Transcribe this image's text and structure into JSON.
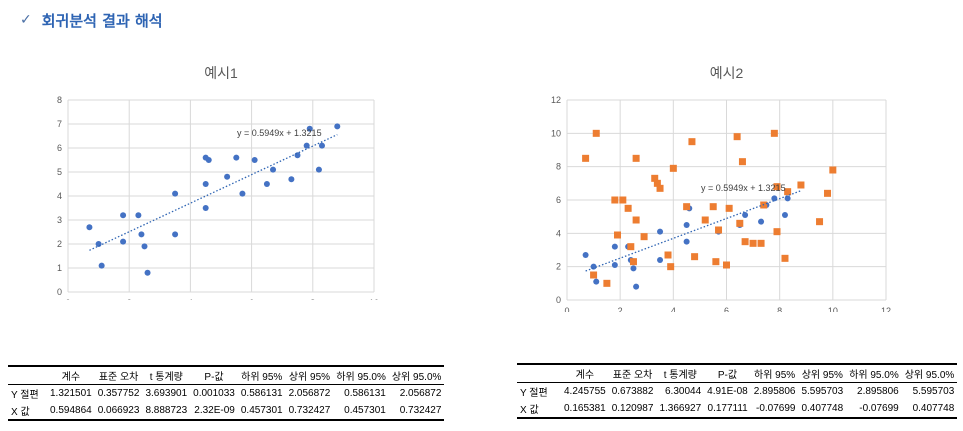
{
  "header": {
    "check_icon": "checkmark-icon",
    "title": "회귀분석 결과 해석"
  },
  "chart_data": [
    {
      "type": "scatter",
      "title": "예시1",
      "xlim": [
        0,
        10
      ],
      "ylim": [
        0,
        8
      ],
      "xticks": [
        0,
        2,
        4,
        6,
        8,
        10
      ],
      "yticks": [
        0,
        1,
        2,
        3,
        4,
        5,
        6,
        7,
        8
      ],
      "grid": true,
      "trendline_label": "y = 0.5949x + 1.3215",
      "trendline": {
        "slope": 0.5949,
        "intercept": 1.3215,
        "x_range": [
          0.7,
          8.8
        ]
      },
      "series": [
        {
          "color": "#4472c4",
          "marker": "circle",
          "points": [
            [
              0.7,
              2.7
            ],
            [
              1.0,
              2.0
            ],
            [
              1.1,
              1.1
            ],
            [
              1.8,
              3.2
            ],
            [
              1.8,
              2.1
            ],
            [
              2.3,
              3.2
            ],
            [
              2.4,
              2.4
            ],
            [
              2.5,
              1.9
            ],
            [
              2.6,
              0.8
            ],
            [
              3.5,
              4.1
            ],
            [
              3.5,
              2.4
            ],
            [
              4.5,
              5.6
            ],
            [
              4.6,
              5.5
            ],
            [
              4.5,
              4.5
            ],
            [
              4.5,
              3.5
            ],
            [
              5.2,
              4.8
            ],
            [
              5.5,
              5.6
            ],
            [
              5.7,
              4.1
            ],
            [
              6.1,
              5.5
            ],
            [
              6.5,
              4.5
            ],
            [
              6.7,
              5.1
            ],
            [
              7.3,
              4.7
            ],
            [
              7.5,
              5.7
            ],
            [
              7.8,
              6.1
            ],
            [
              7.9,
              6.8
            ],
            [
              8.2,
              5.1
            ],
            [
              8.3,
              6.1
            ],
            [
              8.8,
              6.9
            ]
          ]
        }
      ]
    },
    {
      "type": "scatter",
      "title": "예시2",
      "xlim": [
        0,
        12
      ],
      "ylim": [
        0,
        12
      ],
      "xticks": [
        0,
        2,
        4,
        6,
        8,
        10,
        12
      ],
      "yticks": [
        0,
        2,
        4,
        6,
        8,
        10,
        12
      ],
      "grid": true,
      "trendline_label": "y = 0.5949x + 1.3215",
      "trendline": {
        "slope": 0.5949,
        "intercept": 1.3215,
        "x_range": [
          0.7,
          8.8
        ]
      },
      "series": [
        {
          "color": "#4472c4",
          "marker": "circle",
          "points": [
            [
              0.7,
              2.7
            ],
            [
              1.0,
              2.0
            ],
            [
              1.1,
              1.1
            ],
            [
              1.8,
              3.2
            ],
            [
              1.8,
              2.1
            ],
            [
              2.3,
              3.2
            ],
            [
              2.4,
              2.4
            ],
            [
              2.5,
              1.9
            ],
            [
              2.6,
              0.8
            ],
            [
              3.5,
              4.1
            ],
            [
              3.5,
              2.4
            ],
            [
              4.5,
              5.6
            ],
            [
              4.6,
              5.5
            ],
            [
              4.5,
              4.5
            ],
            [
              4.5,
              3.5
            ],
            [
              5.2,
              4.8
            ],
            [
              5.5,
              5.6
            ],
            [
              5.7,
              4.1
            ],
            [
              6.1,
              5.5
            ],
            [
              6.5,
              4.5
            ],
            [
              6.7,
              5.1
            ],
            [
              7.3,
              4.7
            ],
            [
              7.5,
              5.7
            ],
            [
              7.8,
              6.1
            ],
            [
              7.9,
              6.8
            ],
            [
              8.2,
              5.1
            ],
            [
              8.3,
              6.1
            ],
            [
              8.8,
              6.9
            ]
          ]
        },
        {
          "color": "#ed7d31",
          "marker": "square",
          "points": [
            [
              0.7,
              8.5
            ],
            [
              1.0,
              1.5
            ],
            [
              1.1,
              10.0
            ],
            [
              1.5,
              1.0
            ],
            [
              1.8,
              6.0
            ],
            [
              1.9,
              3.9
            ],
            [
              2.1,
              6.0
            ],
            [
              2.3,
              5.5
            ],
            [
              2.4,
              3.2
            ],
            [
              2.5,
              2.3
            ],
            [
              2.6,
              4.8
            ],
            [
              2.6,
              8.5
            ],
            [
              2.9,
              3.8
            ],
            [
              3.3,
              7.3
            ],
            [
              3.4,
              7.0
            ],
            [
              3.5,
              6.7
            ],
            [
              3.8,
              2.7
            ],
            [
              3.9,
              2.0
            ],
            [
              4.0,
              7.9
            ],
            [
              4.5,
              5.6
            ],
            [
              4.7,
              9.5
            ],
            [
              4.8,
              2.6
            ],
            [
              5.2,
              4.8
            ],
            [
              5.5,
              5.6
            ],
            [
              5.6,
              2.3
            ],
            [
              5.7,
              4.2
            ],
            [
              6.0,
              2.1
            ],
            [
              6.1,
              5.5
            ],
            [
              6.4,
              9.8
            ],
            [
              6.5,
              4.6
            ],
            [
              6.6,
              8.3
            ],
            [
              6.7,
              3.5
            ],
            [
              7.0,
              3.4
            ],
            [
              7.3,
              3.4
            ],
            [
              7.4,
              5.7
            ],
            [
              7.8,
              10.0
            ],
            [
              7.9,
              6.8
            ],
            [
              7.9,
              4.1
            ],
            [
              8.2,
              2.5
            ],
            [
              8.3,
              6.5
            ],
            [
              8.8,
              6.9
            ],
            [
              9.5,
              4.7
            ],
            [
              9.8,
              6.4
            ],
            [
              10.0,
              7.8
            ]
          ]
        }
      ]
    }
  ],
  "tables": [
    {
      "headers": [
        "",
        "계수",
        "표준 오차",
        "t 통계량",
        "P-값",
        "하위 95%",
        "상위 95%",
        "하위 95.0%",
        "상위 95.0%"
      ],
      "rows": [
        [
          "Y 절편",
          "1.321501",
          "0.357752",
          "3.693901",
          "0.001033",
          "0.586131",
          "2.056872",
          "0.586131",
          "2.056872"
        ],
        [
          "X 값",
          "0.594864",
          "0.066923",
          "8.888723",
          "2.32E-09",
          "0.457301",
          "0.732427",
          "0.457301",
          "0.732427"
        ]
      ]
    },
    {
      "headers": [
        "",
        "계수",
        "표준 오차",
        "t 통계량",
        "P-값",
        "하위 95%",
        "상위 95%",
        "하위 95.0%",
        "상위 95.0%"
      ],
      "rows": [
        [
          "Y 절편",
          "4.245755",
          "0.673882",
          "6.30044",
          "4.91E-08",
          "2.895806",
          "5.595703",
          "2.895806",
          "5.595703"
        ],
        [
          "X 값",
          "0.165381",
          "0.120987",
          "1.366927",
          "0.177111",
          "-0.07699",
          "0.407748",
          "-0.07699",
          "0.407748"
        ]
      ]
    }
  ]
}
